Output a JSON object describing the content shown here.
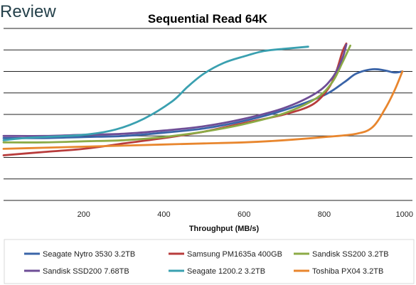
{
  "brand": {
    "text": "Review"
  },
  "chart_data": {
    "type": "line",
    "title": "Sequential Read 64K",
    "xlabel": "Throughput (MB/s)",
    "ylabel": "",
    "xlim": [
      0,
      1020
    ],
    "ylim": [
      0,
      8
    ],
    "xticks": [
      200,
      400,
      600,
      800,
      1000
    ],
    "grid": "horizontal",
    "legend_position": "bottom",
    "series": [
      {
        "name": "Seagate Nytro 3530 3.2TB",
        "color": "#3A64A8",
        "points": [
          [
            0,
            2.9
          ],
          [
            100,
            2.9
          ],
          [
            200,
            2.95
          ],
          [
            300,
            3.0
          ],
          [
            400,
            3.15
          ],
          [
            500,
            3.35
          ],
          [
            600,
            3.7
          ],
          [
            700,
            4.2
          ],
          [
            800,
            4.9
          ],
          [
            850,
            5.5
          ],
          [
            880,
            5.9
          ],
          [
            920,
            6.1
          ],
          [
            950,
            6.05
          ],
          [
            975,
            5.95
          ],
          [
            995,
            6.0
          ]
        ]
      },
      {
        "name": "Samsung PM1635a 400GB",
        "color": "#B83C3C",
        "points": [
          [
            0,
            2.1
          ],
          [
            100,
            2.25
          ],
          [
            200,
            2.4
          ],
          [
            300,
            2.65
          ],
          [
            400,
            2.9
          ],
          [
            500,
            3.2
          ],
          [
            600,
            3.6
          ],
          [
            700,
            4.0
          ],
          [
            770,
            4.45
          ],
          [
            810,
            5.2
          ],
          [
            830,
            6.0
          ],
          [
            845,
            6.9
          ],
          [
            855,
            7.3
          ]
        ]
      },
      {
        "name": "Sandisk SS200 3.2TB",
        "color": "#8CAB46",
        "points": [
          [
            0,
            2.7
          ],
          [
            100,
            2.7
          ],
          [
            200,
            2.75
          ],
          [
            300,
            2.8
          ],
          [
            400,
            2.95
          ],
          [
            500,
            3.2
          ],
          [
            600,
            3.55
          ],
          [
            700,
            4.05
          ],
          [
            780,
            4.75
          ],
          [
            820,
            5.5
          ],
          [
            845,
            6.4
          ],
          [
            865,
            7.2
          ]
        ]
      },
      {
        "name": "Sandisk SSD200 7.68TB",
        "color": "#6E4D96",
        "points": [
          [
            0,
            3.0
          ],
          [
            100,
            3.0
          ],
          [
            200,
            3.05
          ],
          [
            300,
            3.1
          ],
          [
            400,
            3.25
          ],
          [
            500,
            3.45
          ],
          [
            600,
            3.8
          ],
          [
            700,
            4.3
          ],
          [
            780,
            5.0
          ],
          [
            820,
            5.7
          ],
          [
            845,
            6.6
          ],
          [
            855,
            7.25
          ]
        ]
      },
      {
        "name": "Seagate 1200.2 3.2TB",
        "color": "#3AA0B0",
        "points": [
          [
            0,
            2.8
          ],
          [
            50,
            2.9
          ],
          [
            100,
            2.95
          ],
          [
            200,
            3.05
          ],
          [
            280,
            3.3
          ],
          [
            350,
            3.8
          ],
          [
            420,
            4.6
          ],
          [
            460,
            5.3
          ],
          [
            500,
            5.9
          ],
          [
            550,
            6.4
          ],
          [
            600,
            6.7
          ],
          [
            650,
            6.95
          ],
          [
            700,
            7.05
          ],
          [
            760,
            7.15
          ]
        ]
      },
      {
        "name": "Toshiba PX04 3.2TB",
        "color": "#E8862E",
        "points": [
          [
            0,
            2.4
          ],
          [
            100,
            2.45
          ],
          [
            200,
            2.5
          ],
          [
            300,
            2.55
          ],
          [
            400,
            2.6
          ],
          [
            500,
            2.65
          ],
          [
            600,
            2.7
          ],
          [
            700,
            2.8
          ],
          [
            800,
            2.95
          ],
          [
            880,
            3.1
          ],
          [
            920,
            3.4
          ],
          [
            950,
            4.2
          ],
          [
            975,
            5.1
          ],
          [
            995,
            6.0
          ]
        ]
      }
    ]
  }
}
